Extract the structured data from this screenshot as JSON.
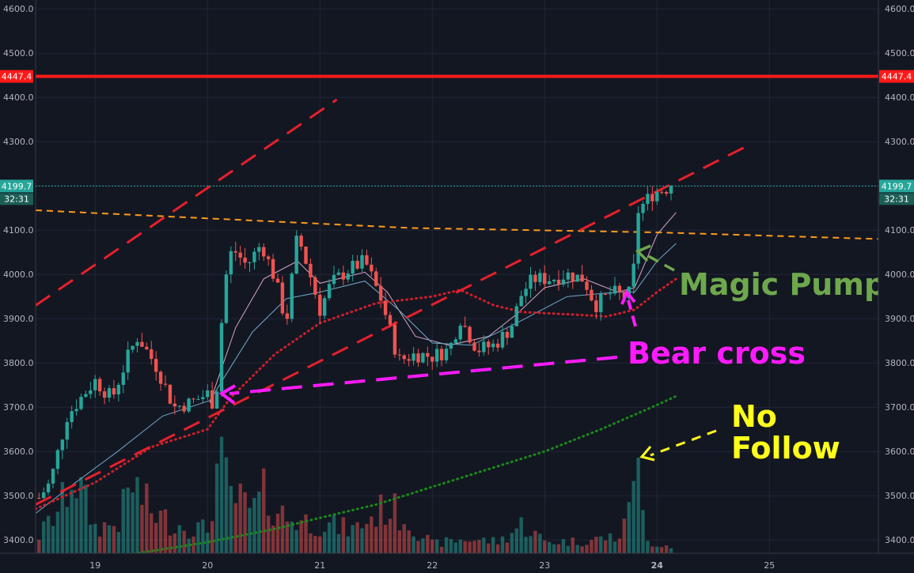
{
  "chart_data": {
    "type": "candlestick",
    "title": "",
    "y_axis": {
      "range": [
        3370,
        4620
      ],
      "ticks": [
        3400.0,
        3500.0,
        3600.0,
        3700.0,
        3800.0,
        3900.0,
        4000.0,
        4100.0,
        4200.0,
        4300.0,
        4400.0,
        4500.0,
        4600.0
      ],
      "tick_labels": [
        "3400.0",
        "3500.0",
        "3600.0",
        "3700.0",
        "3800.0",
        "3900.0",
        "4000.0",
        "4100.0",
        "4200.0",
        "4300.0",
        "4400.0",
        "4500.0",
        "4600.0"
      ],
      "both_sides": true
    },
    "x_axis": {
      "range": [
        18.47,
        25.97
      ],
      "ticks": [
        19,
        20,
        21,
        22,
        23,
        24,
        25
      ],
      "tick_labels": [
        "19",
        "20",
        "21",
        "22",
        "23",
        "24",
        "25"
      ],
      "bold_tick": "24"
    },
    "grid": true,
    "resistance_line": {
      "price": 4447.4,
      "label": "4447.4",
      "color": "#ff1a1a"
    },
    "last_price": {
      "price": 4199.7,
      "label": "4199.7",
      "countdown": "32:31",
      "color": "#26a69a"
    },
    "candle_anchors": [
      [
        18.5,
        3495
      ],
      [
        18.6,
        3530
      ],
      [
        18.75,
        3680
      ],
      [
        18.9,
        3730
      ],
      [
        19.0,
        3760
      ],
      [
        19.15,
        3720
      ],
      [
        19.3,
        3820
      ],
      [
        19.38,
        3860
      ],
      [
        19.55,
        3790
      ],
      [
        19.7,
        3700
      ],
      [
        19.85,
        3710
      ],
      [
        20.0,
        3730
      ],
      [
        20.07,
        3700
      ],
      [
        20.15,
        3980
      ],
      [
        20.22,
        4060
      ],
      [
        20.35,
        4020
      ],
      [
        20.48,
        4070
      ],
      [
        20.6,
        3990
      ],
      [
        20.7,
        3890
      ],
      [
        20.8,
        4090
      ],
      [
        20.9,
        4010
      ],
      [
        21.0,
        3920
      ],
      [
        21.1,
        3980
      ],
      [
        21.25,
        4010
      ],
      [
        21.4,
        4030
      ],
      [
        21.55,
        3940
      ],
      [
        21.7,
        3805
      ],
      [
        21.85,
        3820
      ],
      [
        22.0,
        3815
      ],
      [
        22.15,
        3830
      ],
      [
        22.25,
        3900
      ],
      [
        22.4,
        3830
      ],
      [
        22.55,
        3840
      ],
      [
        22.7,
        3880
      ],
      [
        22.8,
        3960
      ],
      [
        22.9,
        3990
      ],
      [
        23.05,
        3990
      ],
      [
        23.2,
        4000
      ],
      [
        23.35,
        3990
      ],
      [
        23.45,
        3930
      ],
      [
        23.6,
        3960
      ],
      [
        23.7,
        3950
      ],
      [
        23.78,
        3960
      ],
      [
        23.82,
        4140
      ],
      [
        23.9,
        4165
      ],
      [
        23.97,
        4185
      ],
      [
        24.03,
        4190
      ],
      [
        24.13,
        4200
      ]
    ],
    "volume_anchors": [
      [
        18.5,
        0.15
      ],
      [
        18.7,
        0.4
      ],
      [
        18.8,
        0.7
      ],
      [
        19.0,
        0.22
      ],
      [
        19.2,
        0.25
      ],
      [
        19.33,
        0.6
      ],
      [
        19.5,
        0.35
      ],
      [
        19.7,
        0.25
      ],
      [
        20.0,
        0.2
      ],
      [
        20.1,
        0.8
      ],
      [
        20.2,
        0.5
      ],
      [
        20.4,
        0.35
      ],
      [
        20.5,
        0.5
      ],
      [
        20.7,
        0.3
      ],
      [
        21.0,
        0.25
      ],
      [
        21.3,
        0.2
      ],
      [
        21.6,
        0.4
      ],
      [
        21.75,
        0.3
      ],
      [
        22.0,
        0.08
      ],
      [
        22.3,
        0.12
      ],
      [
        22.6,
        0.1
      ],
      [
        22.8,
        0.25
      ],
      [
        23.0,
        0.1
      ],
      [
        23.3,
        0.1
      ],
      [
        23.7,
        0.15
      ],
      [
        23.8,
        0.9
      ],
      [
        23.9,
        0.1
      ],
      [
        24.13,
        0.06
      ]
    ],
    "series": [
      {
        "kind": "ma_fast",
        "color": "#d6a6c8",
        "points": [
          [
            20.02,
            3710
          ],
          [
            20.25,
            3880
          ],
          [
            20.5,
            3990
          ],
          [
            20.8,
            4030
          ],
          [
            21.0,
            3980
          ],
          [
            21.4,
            4005
          ],
          [
            21.6,
            3960
          ],
          [
            21.85,
            3860
          ],
          [
            22.15,
            3840
          ],
          [
            22.5,
            3860
          ],
          [
            22.75,
            3910
          ],
          [
            23.0,
            3970
          ],
          [
            23.35,
            3990
          ],
          [
            23.65,
            3960
          ],
          [
            23.8,
            3970
          ],
          [
            24.0,
            4090
          ],
          [
            24.17,
            4140
          ]
        ]
      },
      {
        "kind": "ma_mid",
        "color": "#6fa8c6",
        "points": [
          [
            18.47,
            3460
          ],
          [
            18.8,
            3525
          ],
          [
            19.2,
            3600
          ],
          [
            19.6,
            3680
          ],
          [
            20.02,
            3715
          ],
          [
            20.4,
            3870
          ],
          [
            20.7,
            3945
          ],
          [
            21.0,
            3960
          ],
          [
            21.4,
            3985
          ],
          [
            21.7,
            3920
          ],
          [
            22.0,
            3845
          ],
          [
            22.35,
            3840
          ],
          [
            22.75,
            3890
          ],
          [
            23.2,
            3950
          ],
          [
            23.65,
            3960
          ],
          [
            23.8,
            3960
          ],
          [
            24.0,
            4030
          ],
          [
            24.17,
            4070
          ]
        ]
      },
      {
        "kind": "dotted_mid_ma",
        "color": "#d01f2a",
        "points": [
          [
            18.47,
            3470
          ],
          [
            19.0,
            3530
          ],
          [
            19.5,
            3610
          ],
          [
            20.0,
            3650
          ],
          [
            20.2,
            3720
          ],
          [
            20.6,
            3820
          ],
          [
            21.0,
            3890
          ],
          [
            21.5,
            3935
          ],
          [
            22.0,
            3950
          ],
          [
            22.25,
            3965
          ],
          [
            22.55,
            3930
          ],
          [
            22.8,
            3915
          ],
          [
            23.2,
            3910
          ],
          [
            23.55,
            3905
          ],
          [
            23.8,
            3920
          ],
          [
            24.0,
            3960
          ],
          [
            24.17,
            3990
          ]
        ]
      },
      {
        "kind": "dotted_long_ma",
        "color": "#1a8a1a",
        "points": [
          [
            18.47,
            3330
          ],
          [
            19.0,
            3355
          ],
          [
            19.5,
            3375
          ],
          [
            20.0,
            3395
          ],
          [
            20.6,
            3425
          ],
          [
            21.0,
            3450
          ],
          [
            21.5,
            3480
          ],
          [
            22.0,
            3520
          ],
          [
            22.5,
            3560
          ],
          [
            23.0,
            3600
          ],
          [
            23.5,
            3650
          ],
          [
            24.0,
            3705
          ],
          [
            24.17,
            3725
          ]
        ]
      },
      {
        "kind": "trend_dashed_orange",
        "color": "#ff9a1a",
        "points": [
          [
            18.47,
            4145
          ],
          [
            21.8,
            4105
          ],
          [
            24.0,
            4095
          ],
          [
            25.97,
            4080
          ]
        ]
      },
      {
        "kind": "trend_dashed_red_top",
        "color": "#e6202c",
        "points": [
          [
            18.47,
            3930
          ],
          [
            21.15,
            4395
          ]
        ]
      },
      {
        "kind": "trend_dashed_red_mid",
        "color": "#e6202c",
        "points": [
          [
            18.47,
            3480
          ],
          [
            24.8,
            4290
          ]
        ]
      }
    ],
    "annotations": [
      {
        "text": "Magic Pump",
        "color": "#6ea84d"
      },
      {
        "text": "Bear cross",
        "color": "#ff1aff"
      },
      {
        "text": "No",
        "color": "#ffff1a"
      },
      {
        "text": "Follow",
        "color": "#ffff1a"
      }
    ]
  }
}
